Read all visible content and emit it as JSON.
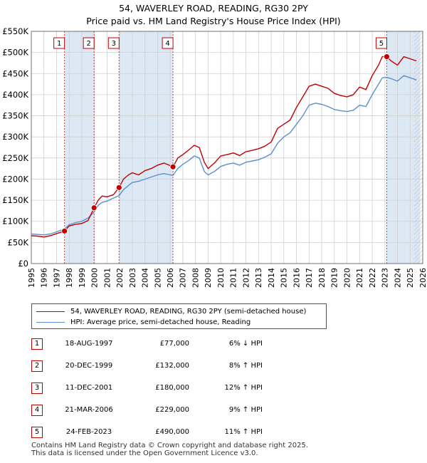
{
  "header": {
    "title_line1": "54, WAVERLEY ROAD, READING, RG30 2PY",
    "title_line2": "Price paid vs. HM Land Registry's House Price Index (HPI)"
  },
  "legend": {
    "property_label": "54, WAVERLEY ROAD, READING, RG30 2PY (semi-detached house)",
    "hpi_label": "HPI: Average price, semi-detached house, Reading"
  },
  "colors": {
    "property": "#c00000",
    "hpi": "#5b8fd0",
    "shade": "#dde8f5",
    "marker_line": "#d04040",
    "grid": "#d0d0d0"
  },
  "chart_data": {
    "type": "line",
    "xlim": [
      1995,
      2026
    ],
    "ylim": [
      0,
      550000
    ],
    "y_ticks": [
      {
        "value": 0,
        "label": "£0"
      },
      {
        "value": 50000,
        "label": "£50K"
      },
      {
        "value": 100000,
        "label": "£100K"
      },
      {
        "value": 150000,
        "label": "£150K"
      },
      {
        "value": 200000,
        "label": "£200K"
      },
      {
        "value": 250000,
        "label": "£250K"
      },
      {
        "value": 300000,
        "label": "£300K"
      },
      {
        "value": 350000,
        "label": "£350K"
      },
      {
        "value": 400000,
        "label": "£400K"
      },
      {
        "value": 450000,
        "label": "£450K"
      },
      {
        "value": 500000,
        "label": "£500K"
      },
      {
        "value": 550000,
        "label": "£550K"
      }
    ],
    "x_ticks": [
      1995,
      1996,
      1997,
      1998,
      1999,
      2000,
      2001,
      2002,
      2003,
      2004,
      2005,
      2006,
      2007,
      2008,
      2009,
      2010,
      2011,
      2012,
      2013,
      2014,
      2015,
      2016,
      2017,
      2018,
      2019,
      2020,
      2021,
      2022,
      2023,
      2024,
      2025,
      2026
    ],
    "shaded_ranges": [
      [
        1997.63,
        1999.97
      ],
      [
        2001.95,
        2006.22
      ],
      [
        2023.15,
        2025.8
      ]
    ],
    "hatched_range": [
      2025.3,
      2026
    ],
    "series": [
      {
        "name": "54, WAVERLEY ROAD, READING, RG30 2PY (semi-detached house)",
        "color": "#c00000",
        "x": [
          1995.0,
          1995.5,
          1996.0,
          1996.5,
          1997.0,
          1997.63,
          1998.0,
          1998.5,
          1999.0,
          1999.5,
          1999.97,
          2000.3,
          2000.6,
          2001.0,
          2001.5,
          2001.95,
          2002.3,
          2002.7,
          2003.0,
          2003.5,
          2004.0,
          2004.5,
          2005.0,
          2005.5,
          2006.0,
          2006.22,
          2006.6,
          2007.0,
          2007.5,
          2007.9,
          2008.3,
          2008.7,
          2009.0,
          2009.5,
          2010.0,
          2010.5,
          2011.0,
          2011.5,
          2012.0,
          2012.5,
          2013.0,
          2013.5,
          2014.0,
          2014.5,
          2015.0,
          2015.5,
          2016.0,
          2016.5,
          2017.0,
          2017.5,
          2018.0,
          2018.5,
          2019.0,
          2019.5,
          2020.0,
          2020.5,
          2021.0,
          2021.5,
          2022.0,
          2022.5,
          2022.8,
          2023.15,
          2023.5,
          2024.0,
          2024.5,
          2025.0,
          2025.5
        ],
        "values": [
          66000,
          65000,
          63000,
          66000,
          71000,
          77000,
          89000,
          93000,
          95000,
          102000,
          132000,
          150000,
          160000,
          158000,
          163000,
          180000,
          200000,
          210000,
          215000,
          210000,
          220000,
          225000,
          233000,
          238000,
          232000,
          229000,
          250000,
          258000,
          270000,
          280000,
          275000,
          240000,
          225000,
          238000,
          255000,
          258000,
          262000,
          256000,
          265000,
          268000,
          272000,
          278000,
          288000,
          320000,
          330000,
          340000,
          370000,
          395000,
          420000,
          425000,
          420000,
          415000,
          403000,
          398000,
          395000,
          400000,
          418000,
          412000,
          445000,
          470000,
          490000,
          490000,
          480000,
          470000,
          490000,
          485000,
          480000
        ]
      },
      {
        "name": "HPI: Average price, semi-detached house, Reading",
        "color": "#5b8fd0",
        "x": [
          1995.0,
          1995.5,
          1996.0,
          1996.5,
          1997.0,
          1997.63,
          1998.0,
          1998.5,
          1999.0,
          1999.5,
          1999.97,
          2000.3,
          2000.6,
          2001.0,
          2001.5,
          2001.95,
          2002.3,
          2002.7,
          2003.0,
          2003.5,
          2004.0,
          2004.5,
          2005.0,
          2005.5,
          2006.0,
          2006.22,
          2006.6,
          2007.0,
          2007.5,
          2007.9,
          2008.3,
          2008.7,
          2009.0,
          2009.5,
          2010.0,
          2010.5,
          2011.0,
          2011.5,
          2012.0,
          2012.5,
          2013.0,
          2013.5,
          2014.0,
          2014.5,
          2015.0,
          2015.5,
          2016.0,
          2016.5,
          2017.0,
          2017.5,
          2018.0,
          2018.5,
          2019.0,
          2019.5,
          2020.0,
          2020.5,
          2021.0,
          2021.5,
          2022.0,
          2022.5,
          2022.8,
          2023.15,
          2023.5,
          2024.0,
          2024.5,
          2025.0,
          2025.5
        ],
        "values": [
          70000,
          69000,
          68000,
          70000,
          75000,
          82000,
          92000,
          97000,
          100000,
          108000,
          122000,
          138000,
          145000,
          148000,
          155000,
          161000,
          175000,
          185000,
          192000,
          195000,
          200000,
          205000,
          210000,
          213000,
          210000,
          209000,
          225000,
          235000,
          245000,
          255000,
          250000,
          218000,
          210000,
          218000,
          230000,
          235000,
          238000,
          233000,
          240000,
          243000,
          246000,
          252000,
          260000,
          285000,
          300000,
          310000,
          330000,
          350000,
          375000,
          380000,
          377000,
          372000,
          365000,
          362000,
          360000,
          363000,
          375000,
          372000,
          400000,
          425000,
          440000,
          441000,
          438000,
          432000,
          445000,
          440000,
          435000
        ]
      }
    ],
    "sales": [
      {
        "num": "1",
        "x": 1997.63,
        "value": 77000,
        "date": "18-AUG-1997",
        "price": "£77,000",
        "hpi": "6% ↓ HPI"
      },
      {
        "num": "2",
        "x": 1999.97,
        "value": 132000,
        "date": "20-DEC-1999",
        "price": "£132,000",
        "hpi": "8% ↑ HPI"
      },
      {
        "num": "3",
        "x": 2001.95,
        "value": 180000,
        "date": "11-DEC-2001",
        "price": "£180,000",
        "hpi": "12% ↑ HPI"
      },
      {
        "num": "4",
        "x": 2006.22,
        "value": 229000,
        "date": "21-MAR-2006",
        "price": "£229,000",
        "hpi": "9% ↑ HPI"
      },
      {
        "num": "5",
        "x": 2023.15,
        "value": 490000,
        "date": "24-FEB-2023",
        "price": "£490,000",
        "hpi": "11% ↑ HPI"
      }
    ]
  },
  "footer": {
    "line1": "Contains HM Land Registry data © Crown copyright and database right 2025.",
    "line2": "This data is licensed under the Open Government Licence v3.0."
  }
}
